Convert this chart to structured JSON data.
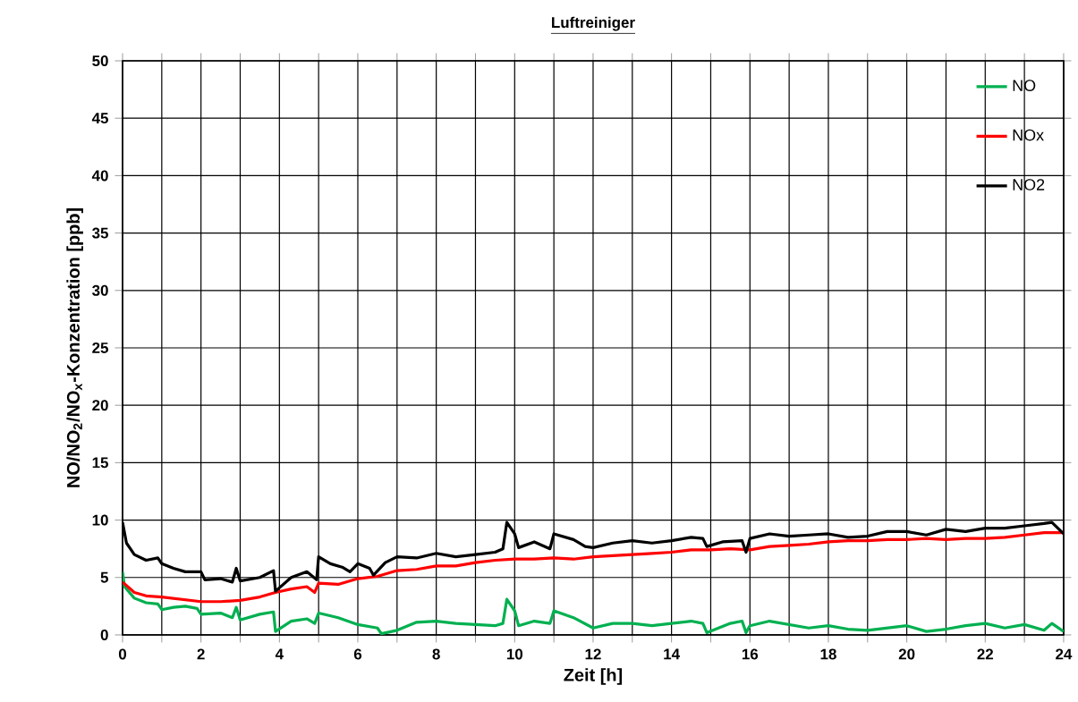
{
  "chart_data": {
    "type": "line",
    "title": "**Luftreiniger**",
    "xlabel": "Zeit [h]",
    "ylabel": "NO/NO$_{2}$/NO$_{x}$-Konzentration [ppb]",
    "xlim": [
      0,
      24
    ],
    "ylim": [
      0,
      50
    ],
    "xticks": [
      0,
      {
        "value": 1,
        "label": null
      },
      2,
      {
        "value": 3,
        "label": null
      },
      4,
      {
        "value": 5,
        "label": null
      },
      6,
      {
        "value": 7,
        "label": null
      },
      8,
      {
        "value": 9,
        "label": null
      },
      10,
      {
        "value": 11,
        "label": null
      },
      12,
      {
        "value": 13,
        "label": null
      },
      14,
      {
        "value": 15,
        "label": null
      },
      16,
      {
        "value": 17,
        "label": null
      },
      18,
      {
        "value": 19,
        "label": null
      },
      20,
      {
        "value": 21,
        "label": null
      },
      22,
      {
        "value": 23,
        "label": null
      },
      24
    ],
    "yticks": [
      0,
      5,
      10,
      15,
      20,
      25,
      30,
      35,
      40,
      45,
      50
    ],
    "grid": true,
    "legend": "top right",
    "marker": "none",
    "line_style": "solid",
    "series": [
      {
        "name": "NO",
        "color": "#00b050",
        "x": [
          0,
          0.05,
          0.3,
          0.6,
          0.9,
          1,
          1.3,
          1.6,
          1.9,
          2,
          2.5,
          2.8,
          2.9,
          3,
          3.5,
          3.85,
          3.9,
          4.3,
          4.7,
          4.9,
          5,
          5.5,
          6,
          6.5,
          6.6,
          7,
          7.5,
          8,
          8.5,
          9,
          9.5,
          9.7,
          9.8,
          10,
          10.1,
          10.5,
          10.9,
          11,
          11.5,
          12,
          12.5,
          13,
          13.5,
          14,
          14.5,
          14.8,
          14.9,
          15.5,
          15.8,
          15.9,
          16,
          16.5,
          17,
          17.5,
          18,
          18.5,
          19,
          19.5,
          20,
          20.5,
          21,
          21.5,
          22,
          22.5,
          23,
          23.5,
          23.7,
          24
        ],
        "values": [
          5.5,
          4.2,
          3.2,
          2.8,
          2.7,
          2.2,
          2.4,
          2.5,
          2.3,
          1.8,
          1.9,
          1.5,
          2.4,
          1.3,
          1.8,
          2.0,
          0.3,
          1.2,
          1.4,
          1.0,
          1.9,
          1.5,
          0.9,
          0.6,
          0.1,
          0.4,
          1.1,
          1.2,
          1.0,
          0.9,
          0.8,
          1.0,
          3.1,
          2.1,
          0.8,
          1.2,
          1.0,
          2.1,
          1.5,
          0.6,
          1.0,
          1.0,
          0.8,
          1.0,
          1.2,
          1.0,
          0.2,
          1.0,
          1.2,
          0.2,
          0.8,
          1.2,
          0.9,
          0.6,
          0.8,
          0.5,
          0.4,
          0.6,
          0.8,
          0.3,
          0.5,
          0.8,
          1.0,
          0.6,
          0.9,
          0.4,
          1.0,
          0.3
        ]
      },
      {
        "name": "NOx",
        "color": "#ff0000",
        "x": [
          0,
          0.3,
          0.6,
          1,
          1.5,
          2,
          2.5,
          3,
          3.5,
          3.9,
          4.3,
          4.7,
          4.9,
          5,
          5.5,
          6,
          6.5,
          7,
          7.5,
          8,
          8.5,
          9,
          9.5,
          10,
          10.5,
          11,
          11.5,
          12,
          12.5,
          13,
          13.5,
          14,
          14.5,
          15,
          15.5,
          16,
          16.5,
          17,
          17.5,
          18,
          18.5,
          19,
          19.5,
          20,
          20.5,
          21,
          21.5,
          22,
          22.5,
          23,
          23.5,
          24
        ],
        "values": [
          4.6,
          3.7,
          3.4,
          3.3,
          3.1,
          2.9,
          2.9,
          3.0,
          3.3,
          3.7,
          4.0,
          4.2,
          3.7,
          4.5,
          4.4,
          4.9,
          5.1,
          5.6,
          5.7,
          6.0,
          6.0,
          6.3,
          6.5,
          6.6,
          6.6,
          6.7,
          6.6,
          6.8,
          6.9,
          7.0,
          7.1,
          7.2,
          7.4,
          7.4,
          7.5,
          7.4,
          7.7,
          7.8,
          7.9,
          8.1,
          8.2,
          8.2,
          8.3,
          8.3,
          8.4,
          8.3,
          8.4,
          8.4,
          8.5,
          8.7,
          8.9,
          8.9
        ]
      },
      {
        "name": "NO2",
        "color": "#000000",
        "x": [
          0,
          0.1,
          0.3,
          0.6,
          0.9,
          1,
          1.3,
          1.6,
          2,
          2.1,
          2.5,
          2.8,
          2.9,
          3,
          3.5,
          3.85,
          3.9,
          4.3,
          4.7,
          4.95,
          5,
          5.3,
          5.6,
          5.8,
          6,
          6.3,
          6.4,
          6.7,
          7,
          7.5,
          8,
          8.5,
          9,
          9.5,
          9.7,
          9.8,
          10,
          10.1,
          10.5,
          10.9,
          11,
          11.5,
          11.8,
          12,
          12.5,
          13,
          13.5,
          14,
          14.5,
          14.8,
          14.9,
          15.3,
          15.8,
          15.9,
          16,
          16.5,
          17,
          17.5,
          18,
          18.5,
          19,
          19.5,
          20,
          20.5,
          21,
          21.5,
          22,
          22.5,
          23,
          23.5,
          23.7,
          24
        ],
        "values": [
          9.8,
          8,
          7,
          6.5,
          6.7,
          6.2,
          5.8,
          5.5,
          5.5,
          4.8,
          4.9,
          4.6,
          5.8,
          4.7,
          5,
          5.6,
          3.8,
          5.0,
          5.5,
          4.8,
          6.8,
          6.2,
          5.9,
          5.5,
          6.2,
          5.8,
          5.2,
          6.3,
          6.8,
          6.7,
          7.1,
          6.8,
          7.0,
          7.2,
          7.5,
          9.8,
          8.8,
          7.6,
          8.1,
          7.5,
          8.8,
          8.3,
          7.7,
          7.6,
          8,
          8.2,
          8.0,
          8.2,
          8.5,
          8.4,
          7.7,
          8.1,
          8.2,
          7.2,
          8.4,
          8.8,
          8.6,
          8.7,
          8.8,
          8.5,
          8.6,
          9.0,
          9.0,
          8.7,
          9.2,
          9.0,
          9.3,
          9.3,
          9.5,
          9.7,
          9.8,
          8.8
        ]
      }
    ]
  }
}
